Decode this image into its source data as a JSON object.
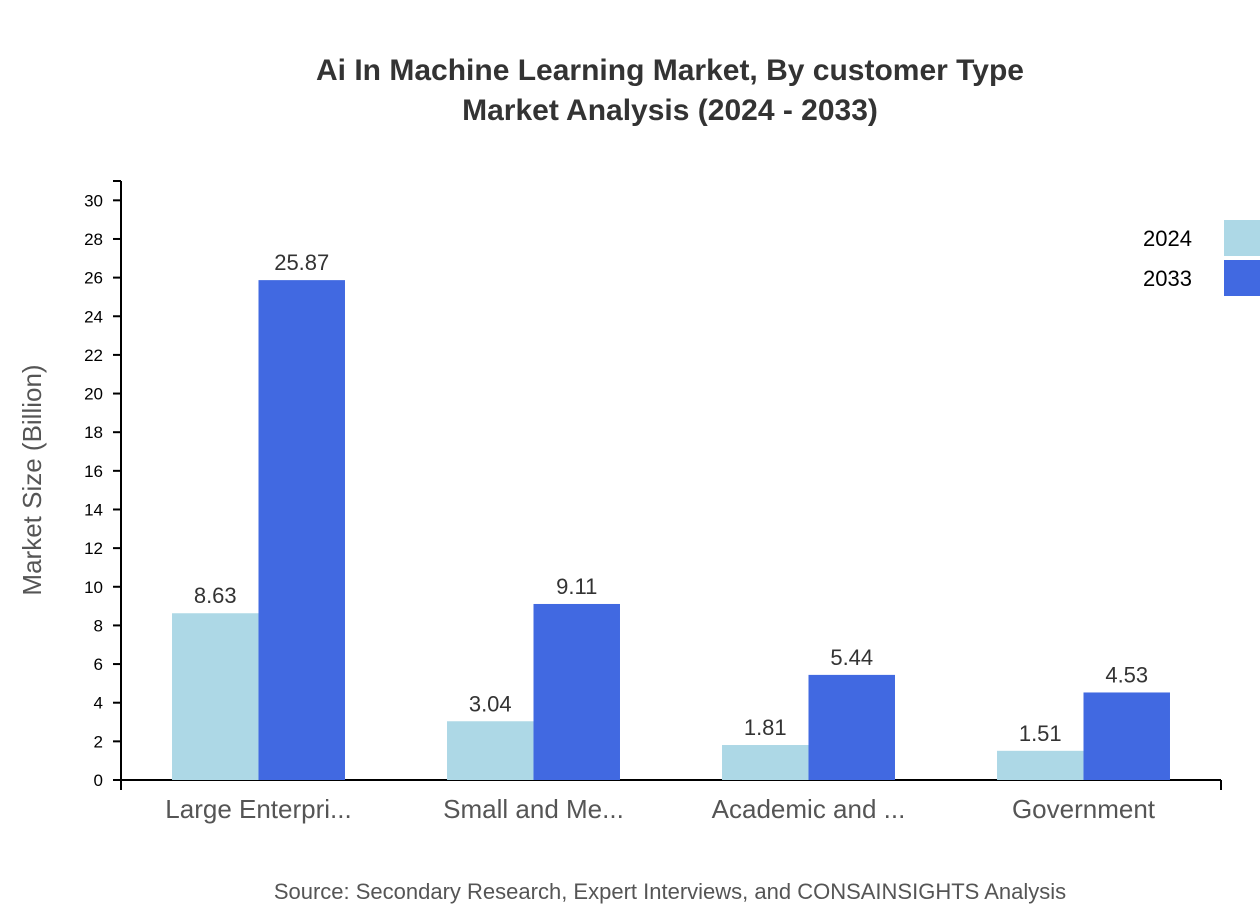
{
  "chart_data": {
    "type": "bar",
    "title": [
      "Ai In Machine Learning Market, By customer Type",
      "Market Analysis (2024 - 2033)"
    ],
    "ylabel": "Market Size (Billion)",
    "xlabel": "",
    "ylim": [
      0,
      31
    ],
    "yticks": [
      0,
      2,
      4,
      6,
      8,
      10,
      12,
      14,
      16,
      18,
      20,
      22,
      24,
      26,
      28,
      30
    ],
    "categories": [
      "Large Enterpri...",
      "Small and Me...",
      "Academic and ...",
      "Government"
    ],
    "series": [
      {
        "name": "2024",
        "color": "#add8e6",
        "values": [
          8.63,
          3.04,
          1.81,
          1.51
        ]
      },
      {
        "name": "2033",
        "color": "#4169e1",
        "values": [
          25.87,
          9.11,
          5.44,
          4.53
        ]
      }
    ],
    "legend_position": "top-right",
    "grid": false,
    "source": "Source: Secondary Research, Expert Interviews, and CONSAINSIGHTS Analysis"
  }
}
